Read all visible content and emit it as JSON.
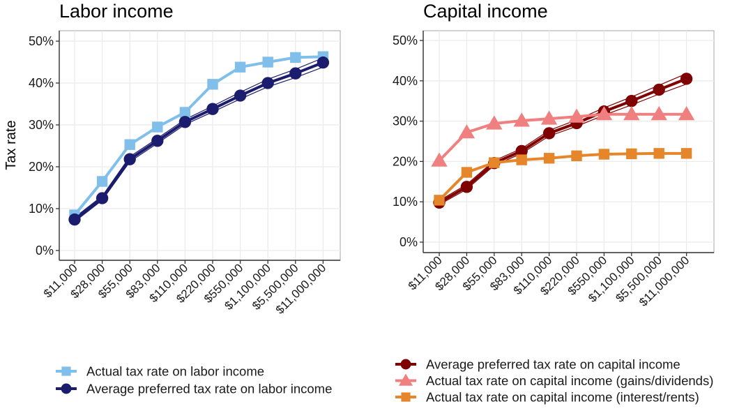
{
  "chart_data": [
    {
      "type": "line",
      "title": "Labor income",
      "xlabel": "",
      "ylabel": "Tax rate",
      "ylim": [
        0,
        50
      ],
      "yticks": [
        "0%",
        "10%",
        "20%",
        "30%",
        "40%",
        "50%"
      ],
      "categories": [
        "$11,000",
        "$28,000",
        "$55,000",
        "$83,000",
        "$110,000",
        "$220,000",
        "$550,000",
        "$1,100,000",
        "$5,500,000",
        "$11,000,000"
      ],
      "grid": true,
      "legend_position": "bottom",
      "series": [
        {
          "name": "Actual tax rate on labor income",
          "color": "#7fbfea",
          "marker": "square",
          "values": [
            8.5,
            16.5,
            25.3,
            29.5,
            33.0,
            39.7,
            43.8,
            45.0,
            46.1,
            46.3
          ]
        },
        {
          "name": "Average preferred tax rate on labor income",
          "color": "#1c1c6e",
          "marker": "circle",
          "values": [
            7.4,
            12.5,
            21.8,
            26.2,
            30.7,
            33.8,
            37.0,
            40.0,
            42.3,
            44.9
          ],
          "ci_low": [
            6.9,
            12.0,
            21.2,
            25.6,
            30.1,
            33.1,
            36.2,
            39.1,
            41.3,
            43.8
          ],
          "ci_high": [
            7.9,
            13.0,
            22.4,
            26.8,
            31.3,
            34.5,
            37.8,
            40.9,
            43.3,
            46.0
          ]
        }
      ]
    },
    {
      "type": "line",
      "title": "Capital income",
      "xlabel": "",
      "ylabel": "",
      "ylim": [
        0,
        50
      ],
      "yticks": [
        "0%",
        "10%",
        "20%",
        "30%",
        "40%",
        "50%"
      ],
      "categories": [
        "$11,000",
        "$28,000",
        "$55,000",
        "$83,000",
        "$110,000",
        "$220,000",
        "$550,000",
        "$1,100,000",
        "$5,500,000",
        "$11,000,000"
      ],
      "grid": true,
      "legend_position": "bottom",
      "series": [
        {
          "name": "Average preferred tax rate on capital income",
          "color": "#7f0000",
          "marker": "circle",
          "values": [
            9.8,
            13.7,
            19.6,
            22.6,
            27.0,
            29.5,
            32.4,
            35.0,
            37.8,
            40.5
          ],
          "ci_low": [
            9.3,
            13.1,
            19.0,
            22.0,
            26.3,
            28.7,
            31.5,
            34.0,
            36.7,
            39.2
          ],
          "ci_high": [
            10.3,
            14.3,
            20.2,
            23.2,
            27.7,
            30.3,
            33.3,
            36.0,
            38.9,
            41.8
          ]
        },
        {
          "name": "Actual tax rate on capital income (gains/dividends)",
          "color": "#f08080",
          "marker": "triangle",
          "values": [
            20.2,
            27.2,
            29.4,
            30.1,
            30.6,
            31.1,
            31.7,
            31.7,
            31.7,
            31.7
          ]
        },
        {
          "name": "Actual tax rate on capital income (interest/rents)",
          "color": "#e6862a",
          "marker": "square",
          "values": [
            10.4,
            17.3,
            19.7,
            20.4,
            20.8,
            21.4,
            21.8,
            21.9,
            22.0,
            22.0
          ]
        }
      ]
    }
  ]
}
